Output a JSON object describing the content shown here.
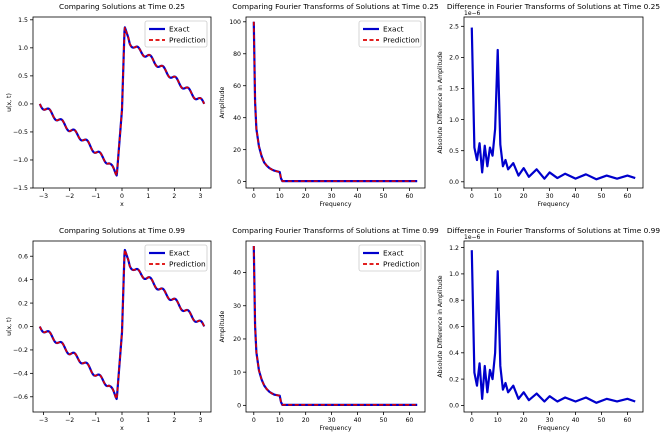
{
  "colors": {
    "exact": "#0000cc",
    "prediction": "#dd0000",
    "background": "#ffffff",
    "axis": "#000000"
  },
  "chart_data": [
    {
      "type": "line",
      "kind": "solution",
      "title": "Comparing Solutions at Time 0.25",
      "xlabel": "x",
      "ylabel": "u(x, t)",
      "xlim": [
        -3.4,
        3.4
      ],
      "ylim": [
        -1.5,
        1.55
      ],
      "xticks": [
        -3,
        -2,
        -1,
        0,
        1,
        2,
        3
      ],
      "xtick_labels": [
        "−3",
        "−2",
        "−1",
        "0",
        "1",
        "2",
        "3"
      ],
      "yticks": [
        -1.5,
        -1.0,
        -0.5,
        0.0,
        0.5,
        1.0,
        1.5
      ],
      "ytick_labels": [
        "−1.5",
        "−1.0",
        "−0.5",
        "0.0",
        "0.5",
        "1.0",
        "1.5"
      ],
      "legend": [
        "Exact",
        "Prediction"
      ],
      "legend_loc": "top-right",
      "amp": 1.38,
      "series": [
        {
          "name": "Exact",
          "x": [
            -3.14,
            -2.5,
            -2.0,
            -1.5,
            -1.0,
            -0.5,
            -0.2,
            0.0,
            0.1,
            0.3,
            0.5,
            1.0,
            1.5,
            2.0,
            2.5,
            3.14
          ],
          "y": [
            0.0,
            -0.25,
            -0.45,
            -0.62,
            -0.85,
            -1.05,
            -1.28,
            -0.1,
            1.38,
            1.1,
            1.0,
            0.85,
            0.65,
            0.45,
            0.25,
            0.0
          ]
        }
      ]
    },
    {
      "type": "line",
      "kind": "fourier",
      "title": "Comparing Fourier Transforms of Solutions at Time 0.25",
      "xlabel": "Frequency",
      "ylabel": "Amplitude",
      "xlim": [
        -3,
        66
      ],
      "ylim": [
        -4,
        103
      ],
      "xticks": [
        0,
        10,
        20,
        30,
        40,
        50,
        60
      ],
      "xtick_labels": [
        "0",
        "10",
        "20",
        "30",
        "40",
        "50",
        "60"
      ],
      "yticks": [
        0,
        20,
        40,
        60,
        80,
        100
      ],
      "ytick_labels": [
        "0",
        "20",
        "40",
        "60",
        "80",
        "100"
      ],
      "legend": [
        "Exact",
        "Prediction"
      ],
      "legend_loc": "top-right",
      "series": [
        {
          "name": "Exact",
          "x": [
            0,
            0.5,
            1,
            2,
            3,
            4,
            5,
            6,
            7,
            8,
            10,
            10.5,
            11,
            63
          ],
          "y": [
            100,
            50,
            33,
            22,
            16,
            12,
            10,
            8.5,
            7.5,
            6.8,
            6.0,
            2.0,
            0.3,
            0.3
          ]
        }
      ]
    },
    {
      "type": "line",
      "kind": "difference",
      "title": "Difference in Fourier Transforms of Solutions at Time 0.25",
      "xlabel": "Frequency",
      "ylabel": "Absolute Difference in Amplitude",
      "exponent": "1e−6",
      "xlim": [
        -3,
        66
      ],
      "ylim": [
        -0.1,
        2.65
      ],
      "xticks": [
        0,
        10,
        20,
        30,
        40,
        50,
        60
      ],
      "xtick_labels": [
        "0",
        "10",
        "20",
        "30",
        "40",
        "50",
        "60"
      ],
      "yticks": [
        0.0,
        0.5,
        1.0,
        1.5,
        2.0,
        2.5
      ],
      "ytick_labels": [
        "0.0",
        "0.5",
        "1.0",
        "1.5",
        "2.0",
        "2.5"
      ],
      "series": [
        {
          "name": "Difference",
          "x": [
            0,
            1,
            2,
            3,
            4,
            5,
            6,
            7,
            8,
            9,
            10,
            11,
            12,
            13,
            14,
            16,
            18,
            20,
            22,
            25,
            28,
            30,
            33,
            36,
            40,
            44,
            48,
            52,
            56,
            60,
            63
          ],
          "y": [
            2.48,
            0.55,
            0.35,
            0.62,
            0.15,
            0.58,
            0.25,
            0.55,
            0.42,
            0.85,
            2.12,
            0.6,
            0.25,
            0.35,
            0.2,
            0.3,
            0.1,
            0.22,
            0.08,
            0.2,
            0.05,
            0.15,
            0.06,
            0.13,
            0.05,
            0.12,
            0.04,
            0.1,
            0.05,
            0.1,
            0.06
          ]
        }
      ]
    },
    {
      "type": "line",
      "kind": "solution",
      "title": "Comparing Solutions at Time 0.99",
      "xlabel": "x",
      "ylabel": "u(x, t)",
      "xlim": [
        -3.4,
        3.4
      ],
      "ylim": [
        -0.73,
        0.73
      ],
      "xticks": [
        -3,
        -2,
        -1,
        0,
        1,
        2,
        3
      ],
      "xtick_labels": [
        "−3",
        "−2",
        "−1",
        "0",
        "1",
        "2",
        "3"
      ],
      "yticks": [
        -0.6,
        -0.4,
        -0.2,
        0.0,
        0.2,
        0.4,
        0.6
      ],
      "ytick_labels": [
        "−0.6",
        "−0.4",
        "−0.2",
        "0.0",
        "0.2",
        "0.4",
        "0.6"
      ],
      "legend": [
        "Exact",
        "Prediction"
      ],
      "legend_loc": "top-right",
      "amp": 0.66,
      "series": [
        {
          "name": "Exact",
          "x": [
            -3.14,
            -2.5,
            -2.0,
            -1.5,
            -1.0,
            -0.5,
            -0.2,
            0.0,
            0.1,
            0.3,
            0.5,
            1.0,
            1.5,
            2.0,
            2.5,
            3.14
          ],
          "y": [
            0.0,
            -0.12,
            -0.22,
            -0.3,
            -0.41,
            -0.5,
            -0.62,
            -0.05,
            0.66,
            0.53,
            0.48,
            0.41,
            0.31,
            0.22,
            0.12,
            0.0
          ]
        }
      ]
    },
    {
      "type": "line",
      "kind": "fourier",
      "title": "Comparing Fourier Transforms of Solutions at Time 0.99",
      "xlabel": "Frequency",
      "ylabel": "Amplitude",
      "xlim": [
        -3,
        66
      ],
      "ylim": [
        -2,
        49.5
      ],
      "xticks": [
        0,
        10,
        20,
        30,
        40,
        50,
        60
      ],
      "xtick_labels": [
        "0",
        "10",
        "20",
        "30",
        "40",
        "50",
        "60"
      ],
      "yticks": [
        0,
        10,
        20,
        30,
        40
      ],
      "ytick_labels": [
        "0",
        "10",
        "20",
        "30",
        "40"
      ],
      "legend": [
        "Exact",
        "Prediction"
      ],
      "legend_loc": "top-right",
      "series": [
        {
          "name": "Exact",
          "x": [
            0,
            0.5,
            1,
            2,
            3,
            4,
            5,
            6,
            7,
            8,
            10,
            10.5,
            11,
            63
          ],
          "y": [
            48,
            24,
            16,
            10.5,
            7.8,
            6.0,
            4.9,
            4.1,
            3.6,
            3.2,
            2.9,
            1.0,
            0.15,
            0.15
          ]
        }
      ]
    },
    {
      "type": "line",
      "kind": "difference",
      "title": "Difference in Fourier Transforms of Solutions at Time 0.99",
      "xlabel": "Frequency",
      "ylabel": "Absolute Difference in Amplitude",
      "exponent": "1e−6",
      "xlim": [
        -3,
        66
      ],
      "ylim": [
        -0.05,
        1.25
      ],
      "xticks": [
        0,
        10,
        20,
        30,
        40,
        50,
        60
      ],
      "xtick_labels": [
        "0",
        "10",
        "20",
        "30",
        "40",
        "50",
        "60"
      ],
      "yticks": [
        0.0,
        0.2,
        0.4,
        0.6,
        0.8,
        1.0,
        1.2
      ],
      "ytick_labels": [
        "0.0",
        "0.2",
        "0.4",
        "0.6",
        "0.8",
        "1.0",
        "1.2"
      ],
      "series": [
        {
          "name": "Difference",
          "x": [
            0,
            1,
            2,
            3,
            4,
            5,
            6,
            7,
            8,
            9,
            10,
            11,
            12,
            13,
            14,
            16,
            18,
            20,
            22,
            25,
            28,
            30,
            33,
            36,
            40,
            44,
            48,
            52,
            56,
            60,
            63
          ],
          "y": [
            1.18,
            0.25,
            0.15,
            0.32,
            0.05,
            0.3,
            0.1,
            0.27,
            0.2,
            0.4,
            1.02,
            0.3,
            0.12,
            0.17,
            0.1,
            0.15,
            0.05,
            0.1,
            0.04,
            0.09,
            0.03,
            0.07,
            0.03,
            0.06,
            0.03,
            0.06,
            0.02,
            0.05,
            0.03,
            0.05,
            0.03
          ]
        }
      ]
    }
  ]
}
